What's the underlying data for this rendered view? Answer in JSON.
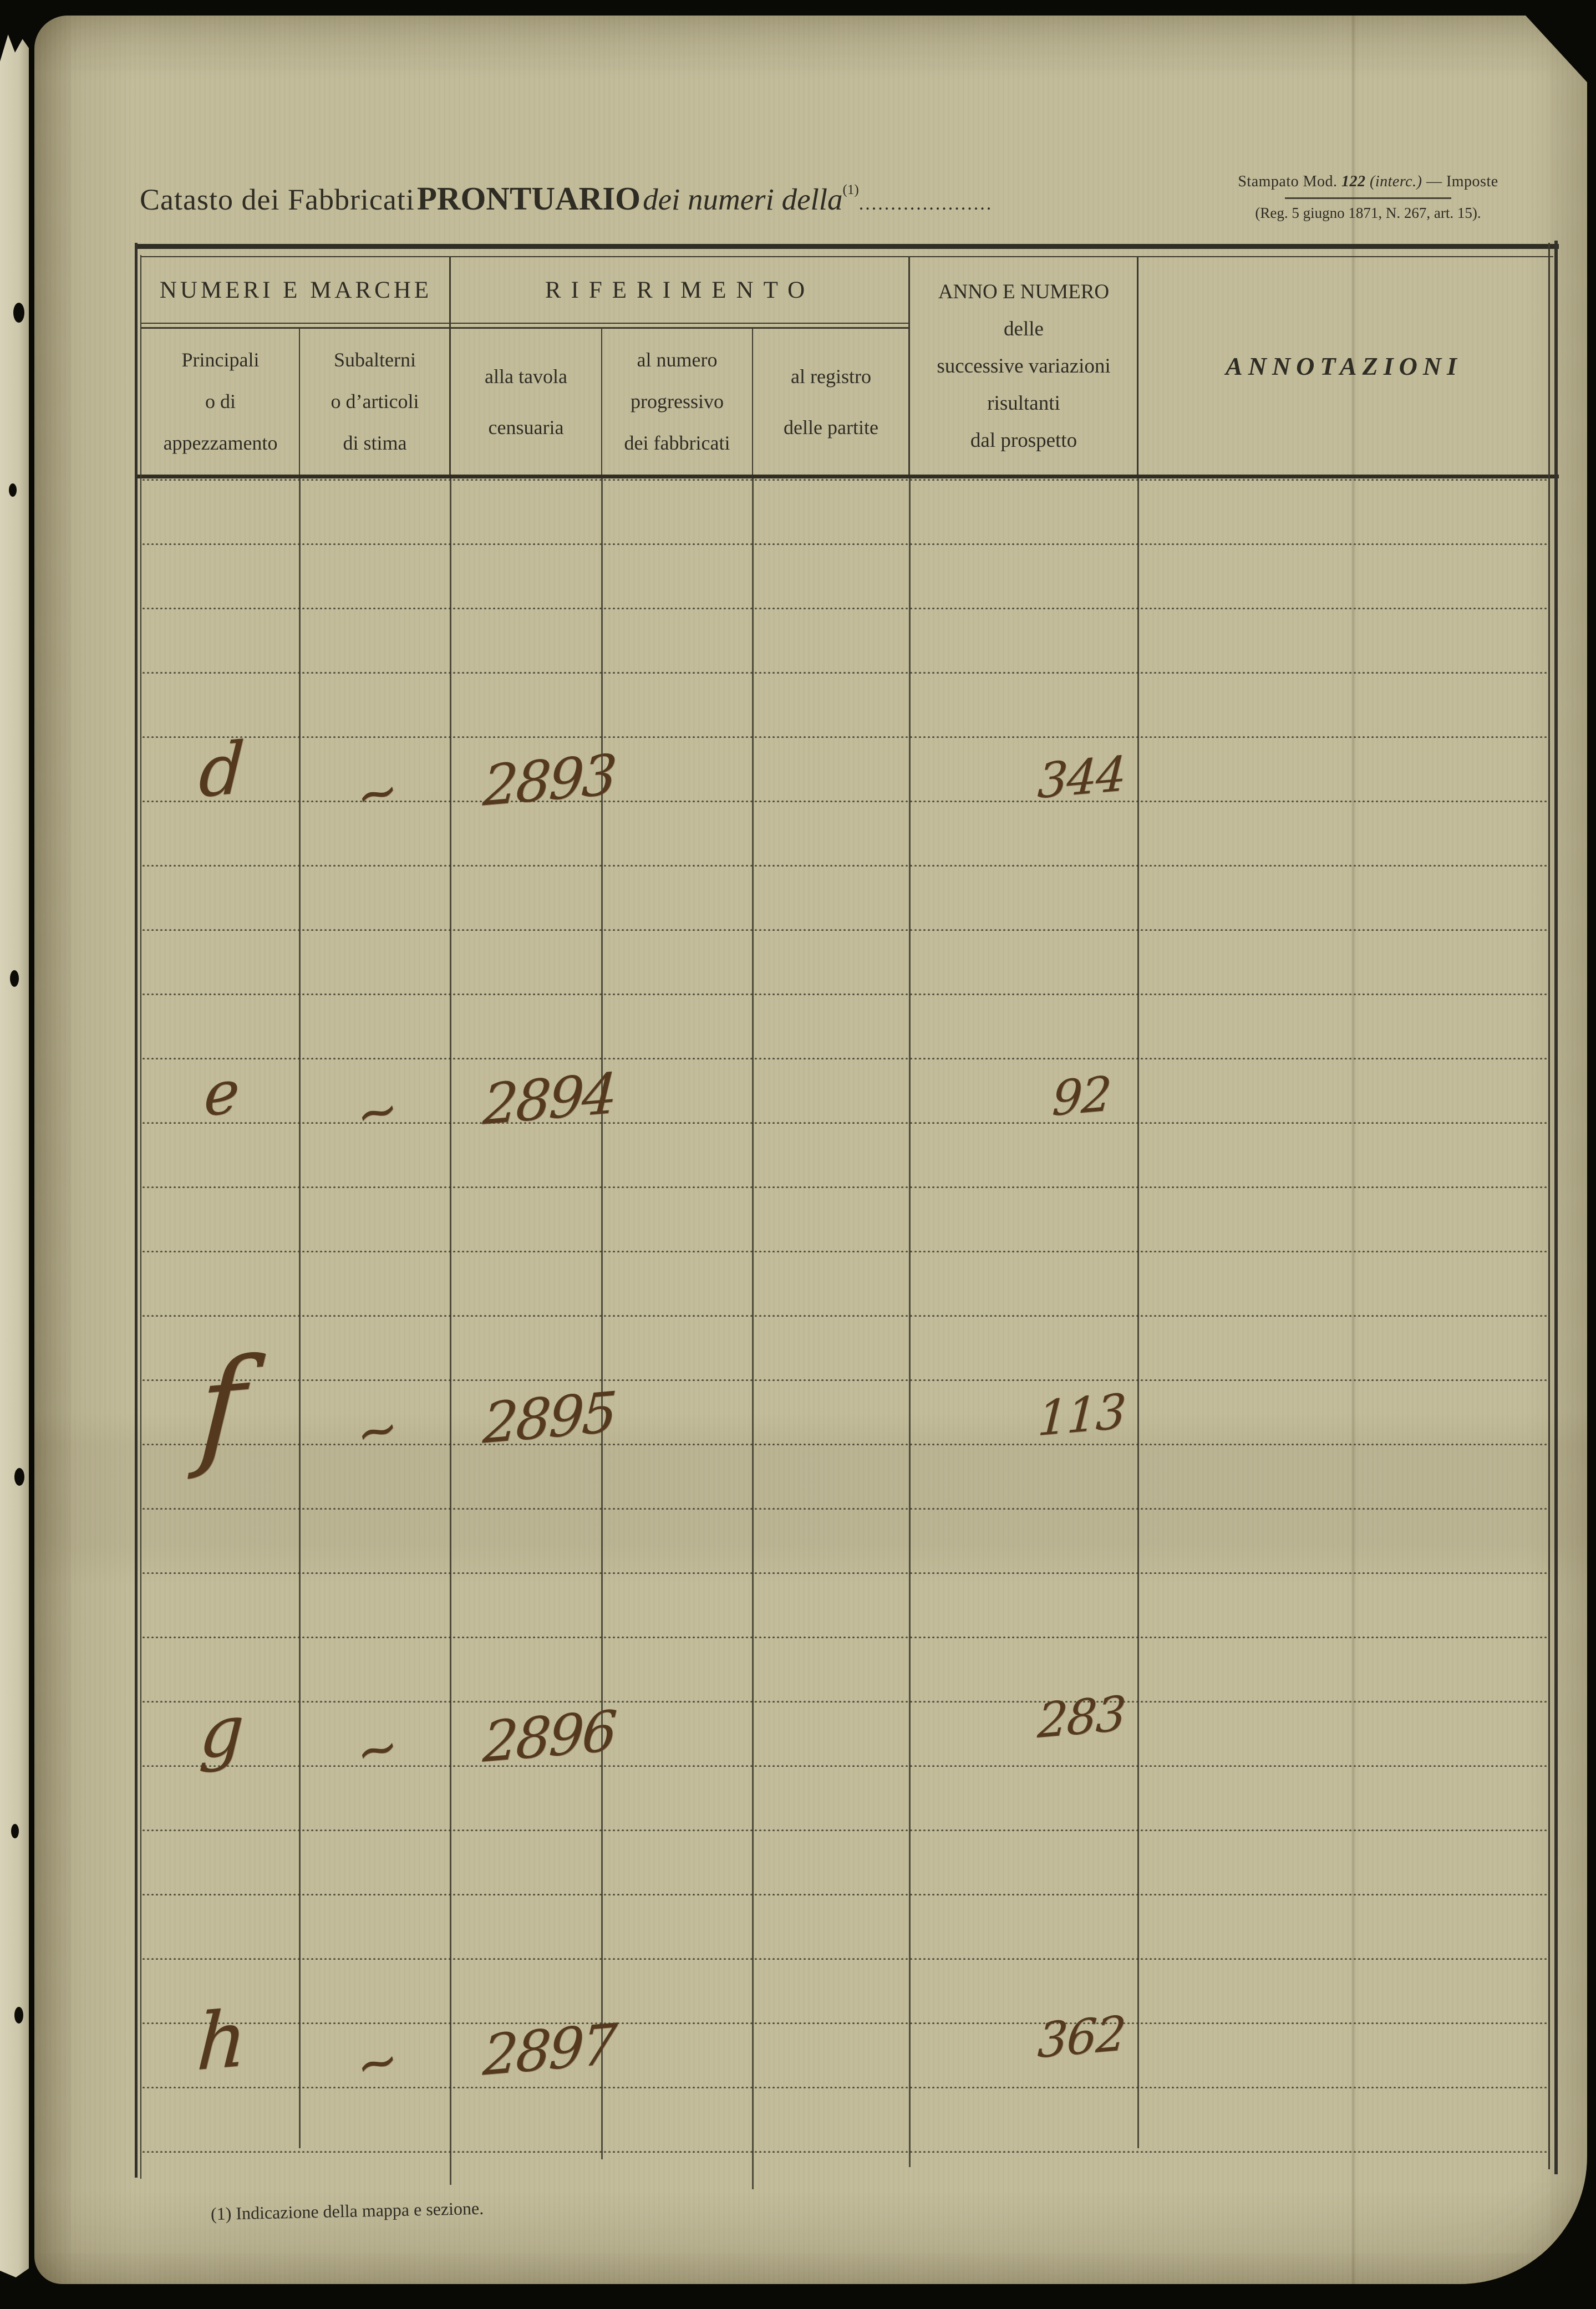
{
  "page": {
    "title": {
      "regular": "Catasto dei Fabbricati",
      "bold": "PRONTUARIO",
      "italic": "dei numeri della",
      "footnote_ref": "(1)",
      "dotted_fill": "....................."
    },
    "stamp": {
      "line1_pre": "Stampato Mod.",
      "line1_num": "122",
      "line1_mid": "(interc.)",
      "line1_post": "— Imposte",
      "line2": "(Reg. 5 giugno 1871, N. 267, art. 15)."
    },
    "footnote": "(1) Indicazione della mappa e sezione."
  },
  "table": {
    "groups": {
      "numeri_e_marche": "NUMERI E MARCHE",
      "riferimento": "RIFERIMENTO"
    },
    "columns": {
      "principali": "Principali\no di\nappezzamento",
      "subalterni": "Subalterni\no d’articoli\ndi stima",
      "tavola": "alla tavola\ncensuaria",
      "progressivo": "al numero\nprogressivo\ndei fabbricati",
      "registro": "al registro\ndelle partite",
      "anno": "ANNO E NUMERO\ndelle\nsuccessive variazioni\nrisultanti\ndal prospetto",
      "annotazioni": "ANNOTAZIONI"
    }
  },
  "entries": [
    {
      "principale": "d",
      "subalterno": "~",
      "tavola": "2893",
      "variazioni": "344"
    },
    {
      "principale": "e",
      "subalterno": "~",
      "tavola": "2894",
      "variazioni": "92"
    },
    {
      "principale": "f",
      "subalterno": "~",
      "tavola": "2895",
      "variazioni": "113"
    },
    {
      "principale": "g",
      "subalterno": "~",
      "tavola": "2896",
      "variazioni": "283"
    },
    {
      "principale": "h",
      "subalterno": "~",
      "tavola": "2897",
      "variazioni": "362"
    }
  ],
  "colors": {
    "paper": "#c2bc9b",
    "ink": "#2e2c23",
    "handwriting": "#54391f",
    "table_line": "#3d3a2d"
  }
}
